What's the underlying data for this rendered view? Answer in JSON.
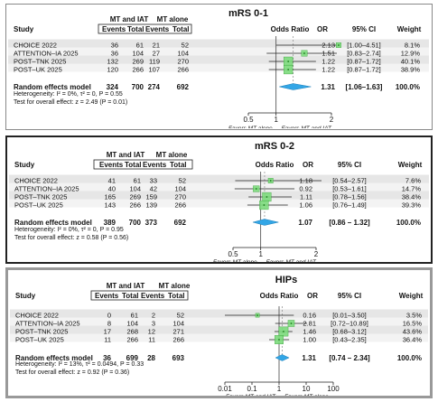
{
  "chart_data": [
    {
      "type": "forest",
      "title": "mRS 0-1",
      "title_color": "#c00000",
      "group_labels": [
        "MT and IAT",
        "MT alone"
      ],
      "columns": [
        "Study",
        "Events",
        "Total",
        "Events",
        "Total",
        "Odds Ratio",
        "OR",
        "95% CI",
        "Weight"
      ],
      "studies": [
        {
          "name": "CHOICE 2022",
          "e1": "36",
          "t1": "61",
          "e2": "21",
          "t2": "52",
          "or": 2.13,
          "lo": 1.0,
          "hi": 4.51,
          "or_text": "2.13",
          "ci_text": "[1.00–4.51]",
          "weight": "8.1%"
        },
        {
          "name": "ATTENTION–IA 2025",
          "e1": "36",
          "t1": "104",
          "e2": "27",
          "t2": "104",
          "or": 1.51,
          "lo": 0.83,
          "hi": 2.74,
          "or_text": "1.51",
          "ci_text": "[0.83–2.74]",
          "weight": "12.9%"
        },
        {
          "name": "POST–TNK 2025",
          "e1": "132",
          "t1": "269",
          "e2": "119",
          "t2": "270",
          "or": 1.22,
          "lo": 0.87,
          "hi": 1.72,
          "or_text": "1.22",
          "ci_text": "[0.87–1.72]",
          "weight": "40.1%"
        },
        {
          "name": "POST–UK 2025",
          "e1": "120",
          "t1": "266",
          "e2": "107",
          "t2": "266",
          "or": 1.22,
          "lo": 0.87,
          "hi": 1.72,
          "or_text": "1.22",
          "ci_text": "[0.87–1.72]",
          "weight": "38.9%"
        }
      ],
      "pooled": {
        "label": "Random effects model",
        "e1": "324",
        "t1": "700",
        "e2": "274",
        "t2": "692",
        "or": 1.31,
        "lo": 1.06,
        "hi": 1.63,
        "or_text": "1.31",
        "ci_text": "[1.06–1.63]",
        "weight": "100.0%"
      },
      "heterogeneity": "Heterogeneity: I² = 0%, τ² = 0, P = 0.55",
      "overall_test": "Test for overall effect: z = 2.49 (P = 0.01)",
      "scale": "linear",
      "xlim": [
        0.5,
        2.0
      ],
      "ticks": [
        0.5,
        1,
        2
      ],
      "tick_labels": [
        "0.5",
        "1",
        "2"
      ],
      "favors_left": "Favors MT alone",
      "favors_right": "Favors MT and IAT"
    },
    {
      "type": "forest",
      "title": "mRS 0-2",
      "title_color": "#c00000",
      "group_labels": [
        "MT and IAT",
        "MT alone"
      ],
      "columns": [
        "Study",
        "Events",
        "Total",
        "Events",
        "Total",
        "Odds Ratio",
        "OR",
        "95% CI",
        "Weight"
      ],
      "studies": [
        {
          "name": "CHOICE 2022",
          "e1": "41",
          "t1": "61",
          "e2": "33",
          "t2": "52",
          "or": 1.18,
          "lo": 0.54,
          "hi": 2.57,
          "or_text": "1.18",
          "ci_text": "[0.54–2.57]",
          "weight": "7.6%"
        },
        {
          "name": "ATTENTION–IA 2025",
          "e1": "40",
          "t1": "104",
          "e2": "42",
          "t2": "104",
          "or": 0.92,
          "lo": 0.53,
          "hi": 1.61,
          "or_text": "0.92",
          "ci_text": "[0.53–1.61]",
          "weight": "14.7%"
        },
        {
          "name": "POST–TNK 2025",
          "e1": "165",
          "t1": "269",
          "e2": "159",
          "t2": "270",
          "or": 1.11,
          "lo": 0.78,
          "hi": 1.56,
          "or_text": "1.11",
          "ci_text": "[0.78–1.56]",
          "weight": "38.4%"
        },
        {
          "name": "POST–UK 2025",
          "e1": "143",
          "t1": "266",
          "e2": "139",
          "t2": "266",
          "or": 1.06,
          "lo": 0.76,
          "hi": 1.49,
          "or_text": "1.06",
          "ci_text": "[0.76–1.49]",
          "weight": "39.3%"
        }
      ],
      "pooled": {
        "label": "Random effects model",
        "e1": "389",
        "t1": "700",
        "e2": "373",
        "t2": "692",
        "or": 1.07,
        "lo": 0.86,
        "hi": 1.32,
        "or_text": "1.07",
        "ci_text": "[0.86 – 1.32]",
        "weight": "100.0%"
      },
      "heterogeneity": "Heterogeneity: I² = 0%, τ² = 0, P = 0.95",
      "overall_test": "Test for overall effect: z = 0.58 (P = 0.56)",
      "scale": "linear",
      "xlim": [
        0.5,
        2.0
      ],
      "ticks": [
        0.5,
        1,
        2
      ],
      "tick_labels": [
        "0.5",
        "1",
        "2"
      ],
      "favors_left": "Favors MT alone",
      "favors_right": "Favors MT and IAT"
    },
    {
      "type": "forest",
      "title": "HIPs",
      "title_color": "#c00000",
      "group_labels": [
        "MT and IAT",
        "MT alone"
      ],
      "columns": [
        "Study",
        "Events",
        "Total",
        "Events",
        "Total",
        "Odds Ratio",
        "OR",
        "95% CI",
        "Weight"
      ],
      "studies": [
        {
          "name": "CHOICE 2022",
          "e1": "0",
          "t1": "61",
          "e2": "2",
          "t2": "52",
          "or": 0.16,
          "lo": 0.01,
          "hi": 3.5,
          "or_text": "0.16",
          "ci_text": "[0.01–3.50]",
          "weight": "3.5%"
        },
        {
          "name": "ATTENTION–IA 2025",
          "e1": "8",
          "t1": "104",
          "e2": "3",
          "t2": "104",
          "or": 2.81,
          "lo": 0.72,
          "hi": 10.89,
          "or_text": "2.81",
          "ci_text": "[0.72–10.89]",
          "weight": "16.5%"
        },
        {
          "name": "POST–TNK 2025",
          "e1": "17",
          "t1": "268",
          "e2": "12",
          "t2": "271",
          "or": 1.46,
          "lo": 0.68,
          "hi": 3.12,
          "or_text": "1.46",
          "ci_text": "[0.68–3.12]",
          "weight": "43.6%"
        },
        {
          "name": "POST–UK 2025",
          "e1": "11",
          "t1": "266",
          "e2": "11",
          "t2": "266",
          "or": 1.0,
          "lo": 0.43,
          "hi": 2.35,
          "or_text": "1.00",
          "ci_text": "[0.43–2.35]",
          "weight": "36.4%"
        }
      ],
      "pooled": {
        "label": "Random effects model",
        "e1": "36",
        "t1": "699",
        "e2": "28",
        "t2": "693",
        "or": 1.31,
        "lo": 0.74,
        "hi": 2.34,
        "or_text": "1.31",
        "ci_text": "[0.74 – 2.34]",
        "weight": "100.0%"
      },
      "heterogeneity": "Heterogeneity: I² = 13%, τ² = 0.0494, P = 0.33",
      "overall_test": "Test for overall effect: z = 0.92 (P = 0.36)",
      "scale": "log",
      "xlim": [
        0.01,
        100
      ],
      "ticks": [
        0.01,
        0.1,
        1,
        10,
        100
      ],
      "tick_labels": [
        "0.01",
        "0.1",
        "1",
        "10",
        "100"
      ],
      "favors_left": "Favors MT and IAT",
      "favors_right": "Favors MT alone"
    }
  ],
  "colors": {
    "row_shade": "#e6e6e6",
    "square": "#7ddb7d",
    "square_edge": "#2e9e2e",
    "ci_line": "#222222",
    "diamond": "#33a6e6",
    "diamond_edge": "#1f7fb8",
    "reference_line": "#444444",
    "pooled_line": "#888888"
  }
}
